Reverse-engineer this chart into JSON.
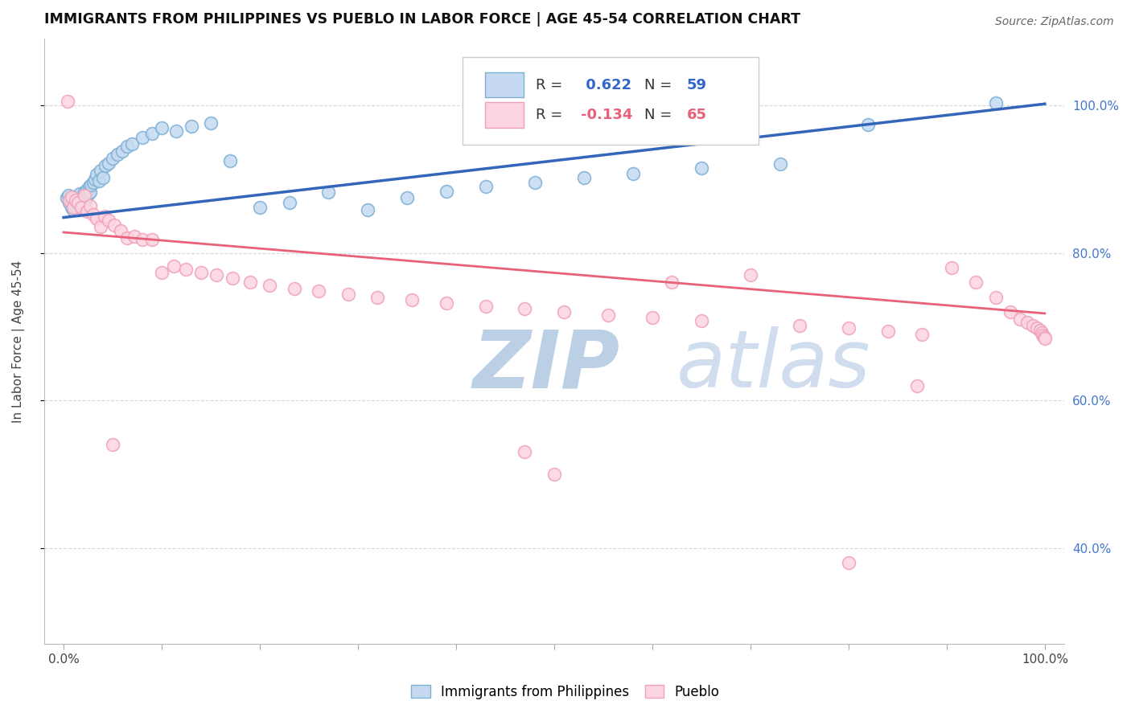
{
  "title": "IMMIGRANTS FROM PHILIPPINES VS PUEBLO IN LABOR FORCE | AGE 45-54 CORRELATION CHART",
  "source": "Source: ZipAtlas.com",
  "ylabel": "In Labor Force | Age 45-54",
  "blue_label": "Immigrants from Philippines",
  "pink_label": "Pueblo",
  "blue_R": 0.622,
  "blue_N": 59,
  "pink_R": -0.134,
  "pink_N": 65,
  "blue_line_start_x": 0.0,
  "blue_line_start_y": 0.848,
  "blue_line_end_x": 1.0,
  "blue_line_end_y": 1.002,
  "pink_line_start_x": 0.0,
  "pink_line_start_y": 0.828,
  "pink_line_end_x": 1.0,
  "pink_line_end_y": 0.718,
  "xlim": [
    -0.02,
    1.02
  ],
  "ylim": [
    0.27,
    1.09
  ],
  "yticks": [
    0.4,
    0.6,
    0.8,
    1.0
  ],
  "ytick_labels": [
    "40.0%",
    "60.0%",
    "80.0%",
    "100.0%"
  ],
  "xtick_positions": [
    0.0,
    0.1,
    0.2,
    0.3,
    0.4,
    0.5,
    0.6,
    0.7,
    0.8,
    0.9,
    1.0
  ],
  "blue_color": "#7bafd4",
  "blue_face_color": "#c5daf0",
  "pink_color": "#f0a0b8",
  "pink_face_color": "#fcd5e0",
  "blue_line_color": "#3366bb",
  "pink_line_color": "#e8607a",
  "watermark_zip_color": "#b8cde0",
  "watermark_atlas_color": "#c5d5e8",
  "background_color": "#ffffff",
  "grid_color": "#d8d8d8",
  "right_axis_color": "#4477cc",
  "blue_scatter_x": [
    0.003,
    0.005,
    0.006,
    0.007,
    0.008,
    0.009,
    0.01,
    0.011,
    0.012,
    0.013,
    0.014,
    0.015,
    0.016,
    0.017,
    0.018,
    0.019,
    0.02,
    0.021,
    0.022,
    0.023,
    0.024,
    0.025,
    0.026,
    0.027,
    0.028,
    0.03,
    0.032,
    0.034,
    0.036,
    0.038,
    0.04,
    0.043,
    0.046,
    0.05,
    0.055,
    0.06,
    0.065,
    0.07,
    0.08,
    0.09,
    0.1,
    0.115,
    0.13,
    0.15,
    0.17,
    0.2,
    0.23,
    0.27,
    0.31,
    0.35,
    0.39,
    0.43,
    0.48,
    0.53,
    0.58,
    0.65,
    0.73,
    0.82,
    0.95
  ],
  "blue_scatter_y": [
    0.875,
    0.878,
    0.868,
    0.872,
    0.862,
    0.87,
    0.858,
    0.876,
    0.864,
    0.87,
    0.874,
    0.858,
    0.88,
    0.865,
    0.872,
    0.868,
    0.86,
    0.882,
    0.872,
    0.876,
    0.886,
    0.88,
    0.89,
    0.882,
    0.892,
    0.896,
    0.9,
    0.906,
    0.898,
    0.912,
    0.902,
    0.918,
    0.922,
    0.928,
    0.934,
    0.938,
    0.944,
    0.948,
    0.956,
    0.962,
    0.97,
    0.965,
    0.972,
    0.976,
    0.925,
    0.862,
    0.868,
    0.882,
    0.858,
    0.875,
    0.884,
    0.89,
    0.895,
    0.902,
    0.908,
    0.915,
    0.92,
    0.974,
    1.003
  ],
  "pink_scatter_x": [
    0.004,
    0.006,
    0.008,
    0.01,
    0.012,
    0.015,
    0.018,
    0.021,
    0.024,
    0.027,
    0.03,
    0.034,
    0.038,
    0.042,
    0.046,
    0.052,
    0.058,
    0.065,
    0.072,
    0.08,
    0.09,
    0.1,
    0.112,
    0.125,
    0.14,
    0.156,
    0.172,
    0.19,
    0.21,
    0.235,
    0.26,
    0.29,
    0.32,
    0.355,
    0.39,
    0.43,
    0.47,
    0.51,
    0.555,
    0.6,
    0.65,
    0.7,
    0.75,
    0.8,
    0.84,
    0.875,
    0.905,
    0.93,
    0.95,
    0.965,
    0.975,
    0.982,
    0.988,
    0.992,
    0.995,
    0.997,
    0.998,
    0.999,
    1.0,
    0.05,
    0.47,
    0.8,
    0.87,
    0.62,
    0.5
  ],
  "pink_scatter_y": [
    1.005,
    0.872,
    0.876,
    0.862,
    0.872,
    0.868,
    0.862,
    0.878,
    0.856,
    0.864,
    0.852,
    0.846,
    0.836,
    0.85,
    0.844,
    0.838,
    0.83,
    0.82,
    0.822,
    0.818,
    0.818,
    0.774,
    0.782,
    0.778,
    0.774,
    0.77,
    0.766,
    0.76,
    0.756,
    0.752,
    0.748,
    0.744,
    0.74,
    0.736,
    0.732,
    0.728,
    0.724,
    0.72,
    0.716,
    0.712,
    0.708,
    0.77,
    0.702,
    0.698,
    0.694,
    0.69,
    0.78,
    0.76,
    0.74,
    0.72,
    0.71,
    0.706,
    0.702,
    0.698,
    0.695,
    0.692,
    0.688,
    0.686,
    0.684,
    0.54,
    0.53,
    0.38,
    0.62,
    0.76,
    0.5
  ]
}
